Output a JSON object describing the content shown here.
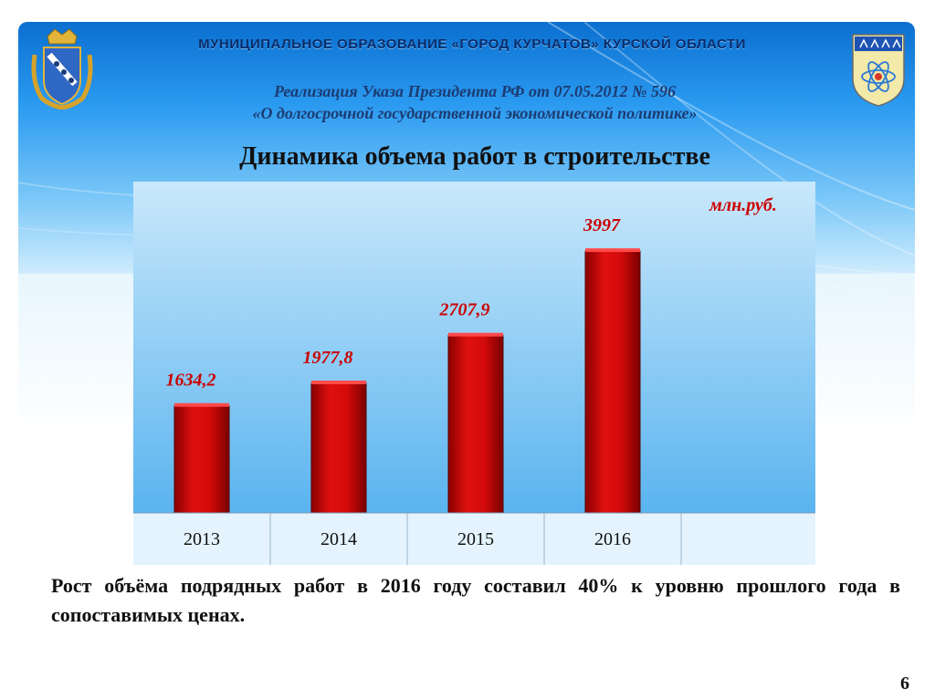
{
  "header": {
    "org_title": "МУНИЦИПАЛЬНОЕ ОБРАЗОВАНИЕ «ГОРОД КУРЧАТОВ» КУРСКОЙ ОБЛАСТИ",
    "subtitle_line1": "Реализация Указа Президента РФ от 07.05.2012 № 596",
    "subtitle_line2": "«О долгосрочной государственной экономической политике»"
  },
  "logos": {
    "left": "kursk-oblast-coat-of-arms",
    "right": "kurchatov-coat-of-arms"
  },
  "chart_data": {
    "type": "bar",
    "title": "Динамика объема работ в строительстве",
    "unit_label": "млн.руб.",
    "categories": [
      "2013",
      "2014",
      "2015",
      "2016"
    ],
    "values": [
      1634.2,
      1977.8,
      2707.9,
      3997
    ],
    "value_labels": [
      "1634,2",
      "1977,8",
      "2707,9",
      "3997"
    ],
    "ylim": [
      0,
      4500
    ],
    "grid": false,
    "colors": {
      "bar": "#d40a0a",
      "bar_dark": "#8a0000",
      "label": "#cc0000",
      "plot_top": "#c9e8fb",
      "plot_bottom": "#5ab4ef"
    }
  },
  "footer": {
    "summary": "Рост объёма подрядных работ в 2016 году составил 40% к уровню прошлого года в сопоставимых ценах.",
    "page_number": "6"
  }
}
